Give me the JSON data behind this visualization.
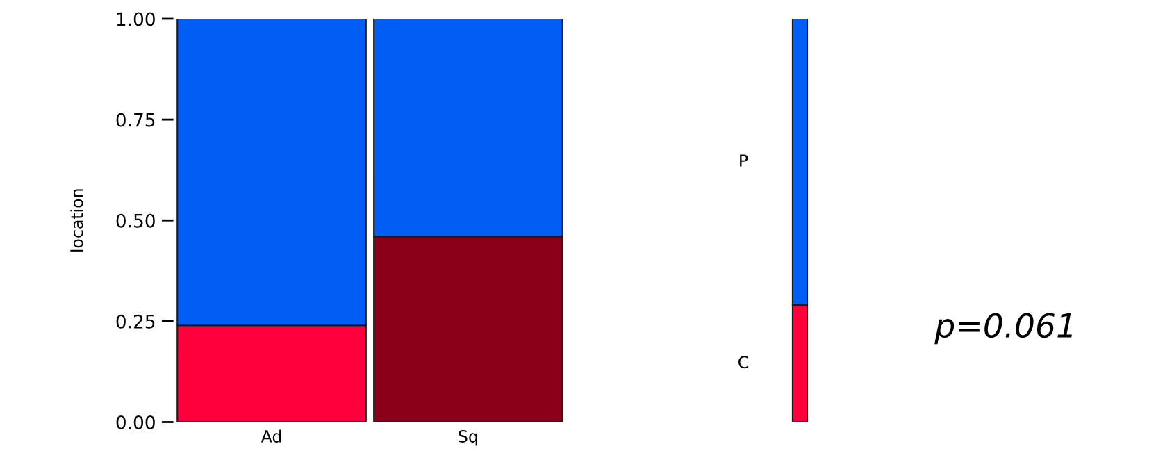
{
  "chart_data": [
    {
      "type": "bar",
      "stacked": true,
      "ylabel": "location",
      "categories": [
        "Ad",
        "Sq"
      ],
      "ylim": [
        0,
        1
      ],
      "yticks": [
        {
          "value": 0,
          "label": "0.00"
        },
        {
          "value": 0.25,
          "label": "0.25"
        },
        {
          "value": 0.5,
          "label": "0.50"
        },
        {
          "value": 0.75,
          "label": "0.75"
        },
        {
          "value": 1,
          "label": "1.00"
        }
      ],
      "series": [
        {
          "colors": [
            "#ff003c",
            "#8b0019"
          ],
          "values": [
            0.24,
            0.46
          ]
        },
        {
          "color": "#005ef5",
          "values": [
            0.76,
            0.54
          ]
        }
      ]
    },
    {
      "type": "bar",
      "stacked": true,
      "categories": [
        null
      ],
      "ylim": [
        0,
        1
      ],
      "tick_labels": false,
      "annotations": [
        "p=0.061"
      ],
      "series": [
        {
          "name": "C",
          "color": "#ff003c",
          "values": [
            0.29
          ]
        },
        {
          "name": "P",
          "color": "#005ef5",
          "values": [
            0.71
          ]
        }
      ]
    }
  ]
}
